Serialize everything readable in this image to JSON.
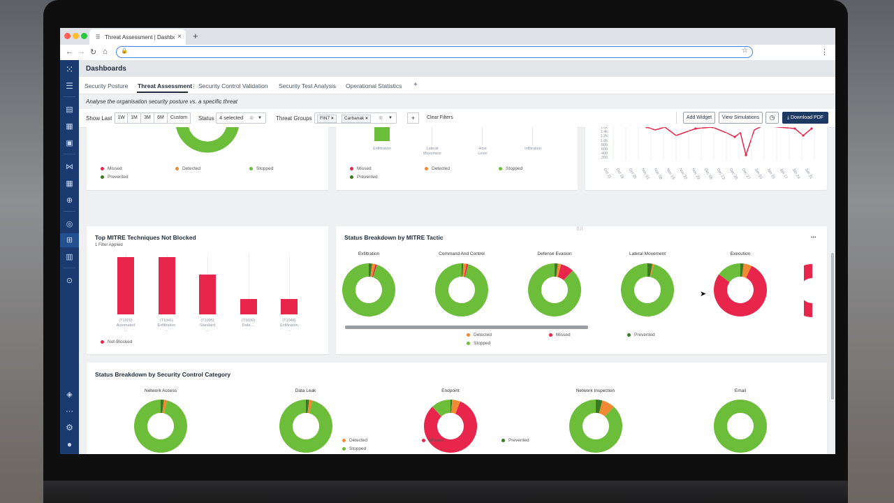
{
  "browser": {
    "tab_title": "Threat Assessment | Dashboar",
    "new_tab_symbol": "+"
  },
  "header": {
    "title": "Dashboards"
  },
  "dashboard_tabs": [
    "Security Posture",
    "Threat Assessment",
    "Security Control Validation",
    "Security Test Analysis",
    "Operational Statistics",
    "+"
  ],
  "subtitle": "Analyse the organisation security posture vs. a specific threat",
  "filters": {
    "show_last_label": "Show Last",
    "periods": [
      "1W",
      "1M",
      "3M",
      "6M",
      "Custom"
    ],
    "status_label": "Status",
    "status_value": "4 selected",
    "threat_groups_label": "Threat Groups",
    "threat_group_chips": [
      "FIN7",
      "Carbanak"
    ],
    "add_symbol": "+",
    "clear_filters": "Clear Filters",
    "add_widget": "Add Widget",
    "view_simulations": "View Simulations",
    "download_pdf": "Download PDF"
  },
  "colors": {
    "missed": "#e8254b",
    "detected": "#f08b34",
    "stopped": "#6cbd3a",
    "prevented": "#3a7a24",
    "navy": "#1a3a70"
  },
  "top_left_card": {
    "legend": [
      "Missed",
      "Detected",
      "Stopped",
      "Prevented"
    ]
  },
  "top_middle_card": {
    "categories": [
      "Exfiltration",
      "Lateral\nMovement",
      "Host\nLevel",
      "Infiltration"
    ],
    "legend": [
      "Missed",
      "Detected",
      "Stopped",
      "Prevented"
    ]
  },
  "top_right_card": {
    "y_ticks": [
      "1.6k",
      "1.4k",
      "1.2k",
      "1.0k",
      "800",
      "600",
      "400",
      "200"
    ],
    "x_ticks": [
      "Oct 11",
      "Oct 18",
      "Oct 25",
      "Nov 01",
      "Nov 08",
      "Nov 15",
      "Nov 22",
      "Nov 29",
      "Dec 06",
      "Dec 13",
      "Dec 20",
      "Dec 27",
      "Jan 03",
      "Jan 10",
      "Jan 17",
      "Jan 24",
      "Jan 31"
    ]
  },
  "techniques_card": {
    "title": "Top MITRE Techniques Not Blocked",
    "subtitle": "1 Filter Applied",
    "bars": [
      {
        "label": "(T1020)\nAutomated\n...",
        "value": 1.0
      },
      {
        "label": "(T1041)\nExfiltration\n...",
        "value": 1.0
      },
      {
        "label": "(T1095)\nStandard\n...",
        "value": 0.7
      },
      {
        "label": "(T1030)\nData ...",
        "value": 0.27
      },
      {
        "label": "(T1048)\nExfiltration\n...",
        "value": 0.27
      }
    ],
    "legend": [
      "Not-Blocked"
    ]
  },
  "tactic_card": {
    "title": "Status Breakdown by MITRE Tactic",
    "menu": "...",
    "donuts": [
      {
        "label": "Exfiltration",
        "segments": {
          "missed": 0.01,
          "detected": 0.02,
          "prevented": 0.02,
          "stopped": 0.95
        }
      },
      {
        "label": "Command And Control",
        "segments": {
          "missed": 0.01,
          "detected": 0.02,
          "prevented": 0.01,
          "stopped": 0.96
        }
      },
      {
        "label": "Defense Evasion",
        "segments": {
          "missed": 0.08,
          "detected": 0.02,
          "prevented": 0.02,
          "stopped": 0.88
        }
      },
      {
        "label": "Lateral Movement",
        "segments": {
          "missed": 0.0,
          "detected": 0.01,
          "prevented": 0.03,
          "stopped": 0.96
        }
      },
      {
        "label": "Execution",
        "segments": {
          "missed": 0.78,
          "detected": 0.05,
          "prevented": 0.02,
          "stopped": 0.15
        }
      }
    ],
    "legend": [
      "Detected",
      "Missed",
      "Prevented",
      "Stopped"
    ]
  },
  "category_card": {
    "title": "Status Breakdown by Security Control Category",
    "donuts": [
      {
        "label": "Network Access",
        "segments": {
          "missed": 0.0,
          "detected": 0.02,
          "prevented": 0.02,
          "stopped": 0.96
        }
      },
      {
        "label": "Data Leak",
        "segments": {
          "missed": 0.0,
          "detected": 0.02,
          "prevented": 0.02,
          "stopped": 0.96
        }
      },
      {
        "label": "Endpoint",
        "segments": {
          "missed": 0.82,
          "detected": 0.05,
          "prevented": 0.01,
          "stopped": 0.12
        }
      },
      {
        "label": "Network Inspection",
        "segments": {
          "missed": 0.0,
          "detected": 0.08,
          "prevented": 0.04,
          "stopped": 0.88
        }
      },
      {
        "label": "Email",
        "segments": {
          "missed": 0.0,
          "detected": 0.0,
          "prevented": 0.0,
          "stopped": 1.0
        }
      }
    ],
    "legend": [
      "Detected",
      "Missed",
      "Prevented",
      "Stopped"
    ]
  }
}
